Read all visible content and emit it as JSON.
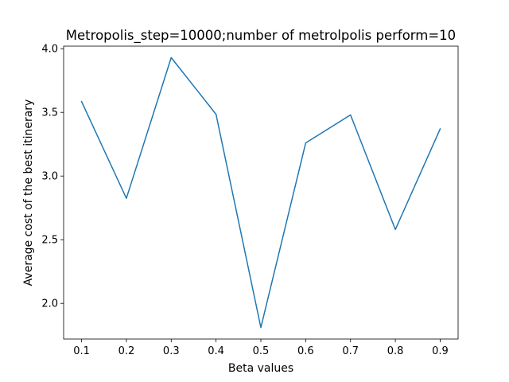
{
  "chart_data": {
    "type": "line",
    "title": "Metropolis_step=10000;number of metrolpolis perform=10",
    "xlabel": "Beta values",
    "ylabel": "Average cost of the best itinerary",
    "x": [
      0.1,
      0.2,
      0.3,
      0.4,
      0.5,
      0.6,
      0.7,
      0.8,
      0.9
    ],
    "series": [
      {
        "values": [
          3.585,
          2.825,
          3.93,
          3.485,
          1.81,
          3.26,
          3.48,
          2.58,
          3.37
        ],
        "color": "#1f77b4"
      }
    ],
    "xlim": [
      0.06,
      0.94
    ],
    "ylim": [
      1.72,
      4.02
    ],
    "xticks": [
      "0.1",
      "0.2",
      "0.3",
      "0.4",
      "0.5",
      "0.6",
      "0.7",
      "0.8",
      "0.9"
    ],
    "yticks": [
      "2.0",
      "2.5",
      "3.0",
      "3.5",
      "4.0"
    ],
    "grid": false,
    "legend": "none"
  }
}
